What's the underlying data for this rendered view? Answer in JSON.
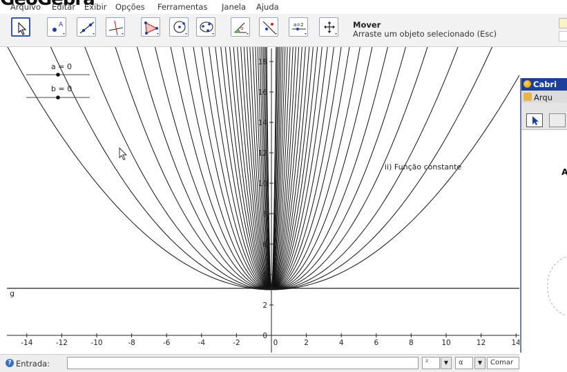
{
  "window": {
    "title_fragment": "GeoGebra"
  },
  "menu": [
    "Arquivo",
    "Editar",
    "Exibir",
    "Opções",
    "Ferramentas",
    "Janela",
    "Ajuda"
  ],
  "tools": [
    {
      "name": "move-tool-button",
      "icon": "cursor-arrow-icon",
      "selected": true
    },
    {
      "name": "point-tool-button",
      "icon": "point-a-icon",
      "badge": "A"
    },
    {
      "name": "line-tool-button",
      "icon": "line-icon"
    },
    {
      "name": "perpendicular-tool-button",
      "icon": "perpendicular-icon"
    },
    {
      "name": "polygon-tool-button",
      "icon": "polygon-icon"
    },
    {
      "name": "circle-tool-button",
      "icon": "circle-icon"
    },
    {
      "name": "conic-tool-button",
      "icon": "conic-icon"
    },
    {
      "name": "angle-tool-button",
      "icon": "angle-icon"
    },
    {
      "name": "reflect-tool-button",
      "icon": "reflect-icon"
    },
    {
      "name": "slider-tool-button",
      "icon": "slider-icon",
      "badge": "a=2"
    },
    {
      "name": "move-view-tool-button",
      "icon": "move-view-icon"
    }
  ],
  "tool_info": {
    "title": "Mover",
    "description": "Arraste um objeto selecionado (Esc)"
  },
  "sliders": [
    {
      "label": "a = 0",
      "value": 0
    },
    {
      "label": "b = 0",
      "value": 0
    }
  ],
  "graph": {
    "x_ticks": [
      "-14",
      "-12",
      "-10",
      "-8",
      "-6",
      "-4",
      "-2",
      "0",
      "2",
      "4",
      "6",
      "8",
      "10",
      "12",
      "14"
    ],
    "y_ticks": [
      "0",
      "2",
      "4",
      "6",
      "8",
      "10",
      "12",
      "14",
      "16",
      "18"
    ],
    "line_label": "g",
    "annotation": "ii) Função constante",
    "constant_line_y": 3
  },
  "cabri": {
    "title": "Cabri",
    "menu_label": "Arqu",
    "partial_text": "A"
  },
  "input_bar": {
    "label": "Entrada:",
    "value": "",
    "selector_exponent": "²",
    "selector_alpha": "α",
    "command_label": "Comar"
  }
}
